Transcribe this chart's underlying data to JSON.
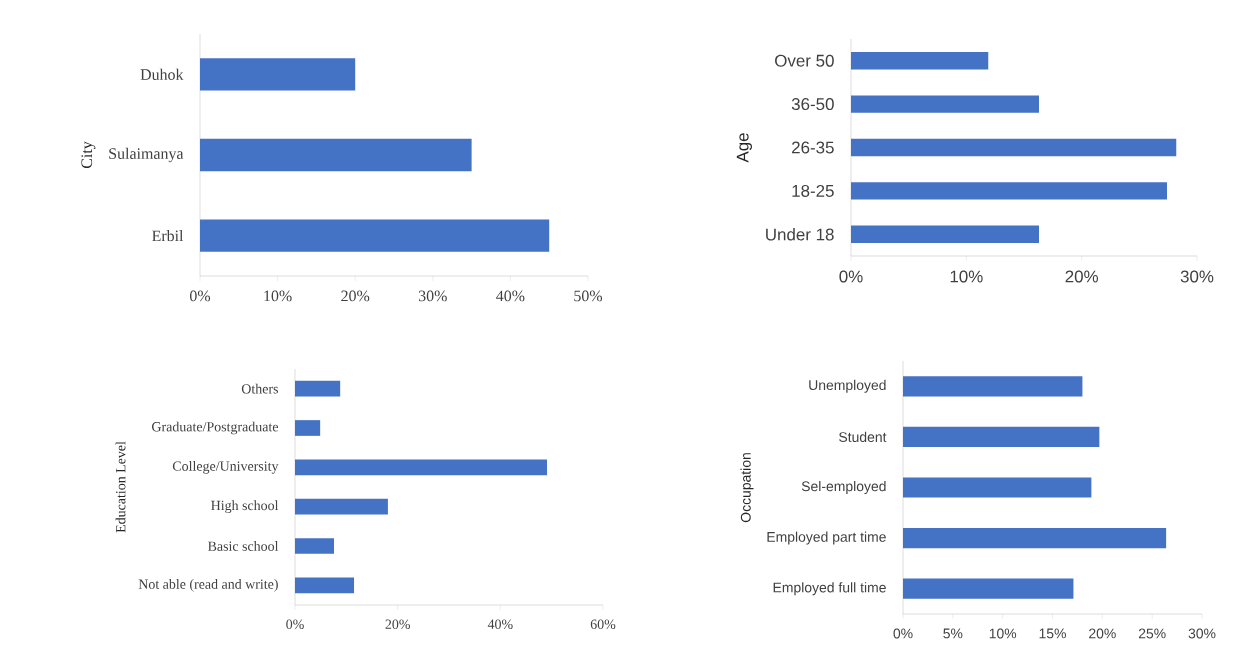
{
  "chart_data": [
    {
      "type": "bar",
      "orientation": "horizontal",
      "ylabel": "City",
      "categories": [
        "Duhok",
        "Sulaimanya",
        "Erbil"
      ],
      "values": [
        20,
        35,
        45
      ],
      "color": "#4472c4",
      "xlim": [
        0,
        50
      ],
      "xticks": [
        {
          "value": 0,
          "label": "0%"
        },
        {
          "value": 10,
          "label": "10%"
        },
        {
          "value": 20,
          "label": "20%"
        },
        {
          "value": 30,
          "label": "30%"
        },
        {
          "value": 40,
          "label": "40%"
        },
        {
          "value": 50,
          "label": "50%"
        }
      ]
    },
    {
      "type": "bar",
      "orientation": "horizontal",
      "ylabel": "Age",
      "categories": [
        "Over 50",
        "36-50",
        "26-35",
        "18-25",
        "Under 18"
      ],
      "values": [
        11.9,
        16.3,
        28.2,
        27.4,
        16.3
      ],
      "color": "#4472c4",
      "xlim": [
        0,
        30
      ],
      "xticks": [
        {
          "value": 0,
          "label": "0%"
        },
        {
          "value": 10,
          "label": "10%"
        },
        {
          "value": 20,
          "label": "20%"
        },
        {
          "value": 30,
          "label": "30%"
        }
      ]
    },
    {
      "type": "bar",
      "orientation": "horizontal",
      "ylabel": "Education Level",
      "categories": [
        "Others",
        "Graduate/Postgraduate",
        "College/University",
        "High school",
        "Basic school",
        "Not able (read and write)"
      ],
      "values": [
        8.8,
        4.9,
        49.1,
        18.1,
        7.6,
        11.5
      ],
      "color": "#4472c4",
      "xlim": [
        0,
        60
      ],
      "xticks": [
        {
          "value": 0,
          "label": "0%"
        },
        {
          "value": 20,
          "label": "20%"
        },
        {
          "value": 40,
          "label": "40%"
        },
        {
          "value": 60,
          "label": "60%"
        }
      ]
    },
    {
      "type": "bar",
      "orientation": "horizontal",
      "ylabel": "Occupation",
      "categories": [
        "Unemployed",
        "Student",
        "Sel-employed",
        "Employed part time",
        "Employed full time"
      ],
      "values": [
        18.0,
        19.7,
        18.9,
        26.4,
        17.1
      ],
      "color": "#4472c4",
      "xlim": [
        0,
        30
      ],
      "xticks": [
        {
          "value": 0,
          "label": "0%"
        },
        {
          "value": 5,
          "label": "5%"
        },
        {
          "value": 10,
          "label": "10%"
        },
        {
          "value": 15,
          "label": "15%"
        },
        {
          "value": 20,
          "label": "20%"
        },
        {
          "value": 25,
          "label": "25%"
        },
        {
          "value": 30,
          "label": "30%"
        }
      ]
    }
  ]
}
